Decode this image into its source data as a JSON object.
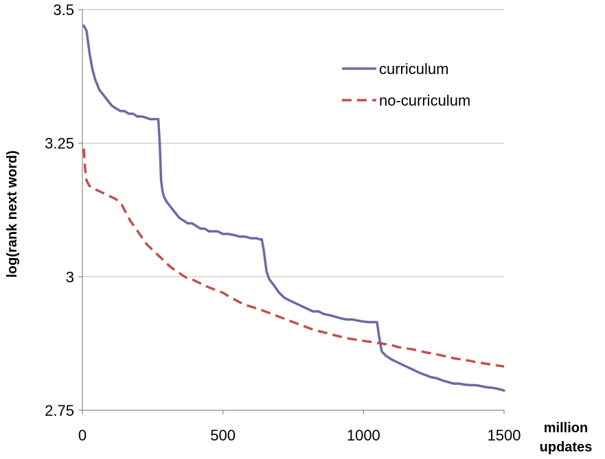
{
  "chart_data": {
    "type": "line",
    "title": "",
    "xlabel": "million updates",
    "xlabel_lines": [
      "million",
      "updates"
    ],
    "ylabel": "log(rank next word)",
    "xlim": [
      0,
      1500
    ],
    "ylim": [
      2.75,
      3.5
    ],
    "x_ticks": [
      0,
      500,
      1000,
      1500
    ],
    "y_ticks": [
      2.75,
      3,
      3.25,
      3.5
    ],
    "x_tick_labels": [
      "0",
      "500",
      "1000",
      "1500"
    ],
    "y_tick_labels": [
      "2.75",
      "3",
      "3.25",
      "3.5"
    ],
    "grid": "horizontal",
    "legend_position": "top-right",
    "series": [
      {
        "name": "curriculum",
        "color": "#6a6aa6",
        "dash": "solid",
        "x": [
          5,
          15,
          25,
          35,
          45,
          60,
          75,
          90,
          105,
          120,
          135,
          150,
          165,
          180,
          195,
          210,
          225,
          240,
          255,
          270,
          275,
          280,
          285,
          290,
          300,
          315,
          330,
          345,
          360,
          375,
          390,
          405,
          420,
          435,
          450,
          465,
          480,
          500,
          520,
          540,
          560,
          580,
          600,
          620,
          630,
          638,
          645,
          655,
          665,
          680,
          700,
          720,
          740,
          760,
          780,
          800,
          820,
          840,
          860,
          880,
          900,
          920,
          940,
          960,
          980,
          1000,
          1020,
          1040,
          1048,
          1055,
          1065,
          1080,
          1100,
          1120,
          1140,
          1160,
          1180,
          1200,
          1220,
          1240,
          1260,
          1280,
          1300,
          1320,
          1340,
          1360,
          1380,
          1400,
          1420,
          1440,
          1460,
          1480,
          1500
        ],
        "values": [
          3.47,
          3.46,
          3.42,
          3.39,
          3.37,
          3.35,
          3.34,
          3.33,
          3.32,
          3.315,
          3.31,
          3.31,
          3.305,
          3.305,
          3.3,
          3.3,
          3.298,
          3.295,
          3.295,
          3.295,
          3.25,
          3.18,
          3.16,
          3.15,
          3.14,
          3.13,
          3.12,
          3.11,
          3.105,
          3.1,
          3.1,
          3.095,
          3.09,
          3.09,
          3.085,
          3.085,
          3.085,
          3.08,
          3.08,
          3.078,
          3.075,
          3.075,
          3.072,
          3.072,
          3.07,
          3.07,
          3.05,
          3.01,
          2.995,
          2.985,
          2.97,
          2.96,
          2.955,
          2.95,
          2.945,
          2.94,
          2.935,
          2.935,
          2.93,
          2.928,
          2.925,
          2.922,
          2.92,
          2.92,
          2.918,
          2.916,
          2.915,
          2.915,
          2.915,
          2.89,
          2.86,
          2.852,
          2.845,
          2.84,
          2.835,
          2.83,
          2.825,
          2.82,
          2.816,
          2.812,
          2.81,
          2.806,
          2.803,
          2.8,
          2.8,
          2.798,
          2.797,
          2.797,
          2.795,
          2.793,
          2.792,
          2.79,
          2.787
        ]
      },
      {
        "name": "no-curriculum",
        "color": "#c0504d",
        "dash": "dashed",
        "x": [
          5,
          10,
          15,
          25,
          40,
          60,
          80,
          100,
          120,
          140,
          155,
          170,
          190,
          210,
          230,
          250,
          270,
          290,
          310,
          330,
          350,
          370,
          390,
          410,
          430,
          450,
          475,
          500,
          525,
          550,
          575,
          600,
          625,
          650,
          675,
          700,
          725,
          750,
          775,
          800,
          825,
          850,
          875,
          900,
          925,
          950,
          975,
          1000,
          1025,
          1050,
          1075,
          1100,
          1125,
          1150,
          1175,
          1200,
          1225,
          1250,
          1275,
          1300,
          1325,
          1350,
          1375,
          1400,
          1425,
          1450,
          1475,
          1500
        ],
        "values": [
          3.24,
          3.2,
          3.18,
          3.17,
          3.165,
          3.16,
          3.155,
          3.15,
          3.145,
          3.135,
          3.12,
          3.105,
          3.09,
          3.075,
          3.06,
          3.05,
          3.04,
          3.03,
          3.02,
          3.012,
          3.005,
          2.998,
          2.995,
          2.99,
          2.985,
          2.98,
          2.975,
          2.97,
          2.962,
          2.955,
          2.948,
          2.944,
          2.94,
          2.935,
          2.93,
          2.925,
          2.92,
          2.915,
          2.91,
          2.905,
          2.9,
          2.897,
          2.894,
          2.89,
          2.887,
          2.884,
          2.882,
          2.88,
          2.878,
          2.876,
          2.874,
          2.872,
          2.868,
          2.866,
          2.864,
          2.861,
          2.858,
          2.856,
          2.853,
          2.85,
          2.847,
          2.845,
          2.843,
          2.84,
          2.838,
          2.836,
          2.834,
          2.832
        ]
      }
    ]
  }
}
